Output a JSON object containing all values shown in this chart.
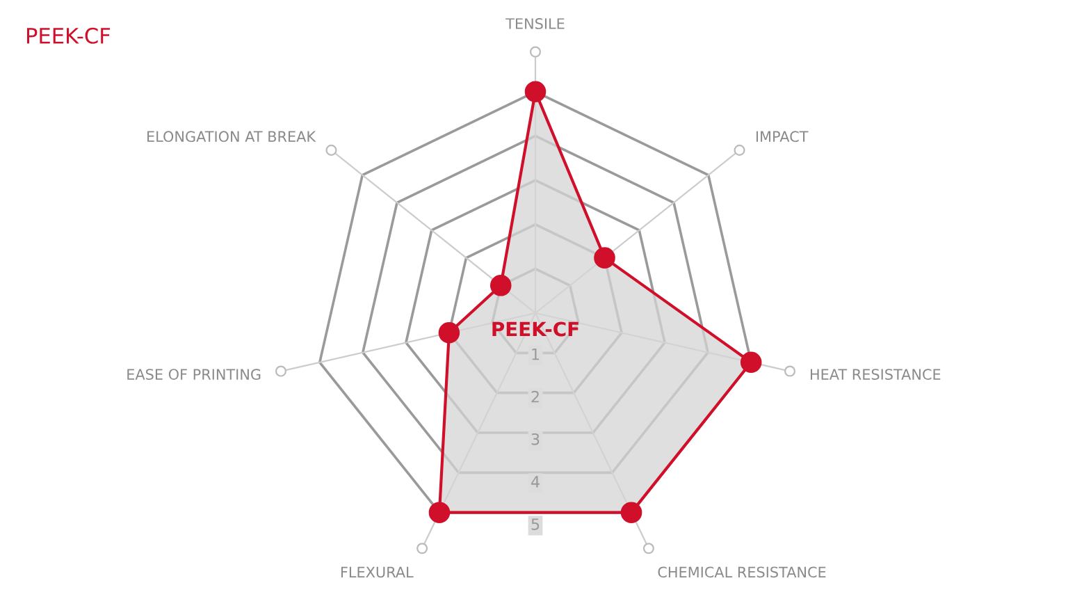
{
  "chart_data": {
    "type": "radar",
    "title": "PEEK-CF",
    "categories": [
      "TENSILE",
      "IMPACT",
      "HEAT RESISTANCE",
      "CHEMICAL RESISTANCE",
      "FLEXURAL",
      "EASE OF PRINTING",
      "ELONGATION AT BREAK"
    ],
    "series": [
      {
        "name": "PEEK-CF",
        "color": "#d0102a",
        "values": [
          5,
          2,
          5,
          5,
          5,
          2,
          1
        ]
      }
    ],
    "ylim": [
      0,
      5
    ],
    "yticks": [
      1,
      2,
      3,
      4,
      5
    ],
    "marker": "circle",
    "grid": true
  }
}
